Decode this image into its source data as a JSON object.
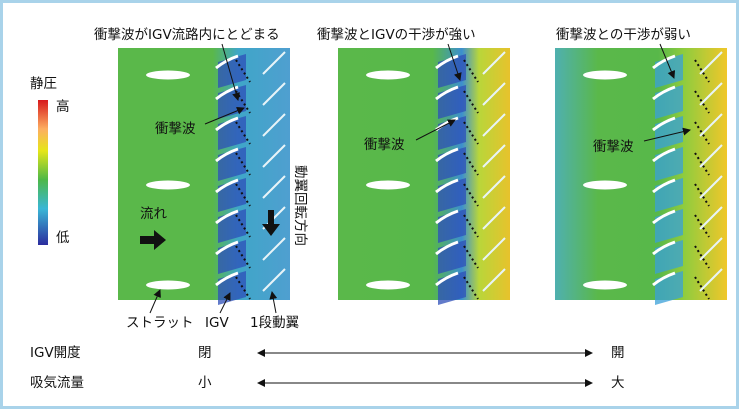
{
  "panels": [
    {
      "title": "衝撃波がIGV流路内にとどまる",
      "shock_label": "衝撃波"
    },
    {
      "title": "衝撃波とIGVの干渉が強い",
      "shock_label": "衝撃波"
    },
    {
      "title": "衝撃波との干渉が弱い",
      "shock_label": "衝撃波"
    }
  ],
  "legend": {
    "title": "静圧",
    "high": "高",
    "low": "低"
  },
  "annotations": {
    "flow": "流れ",
    "rotation": "動翼回転方向",
    "strut": "ストラット",
    "igv": "IGV",
    "rotor": "1段動翼"
  },
  "rows": [
    {
      "label": "IGV開度",
      "left": "閉",
      "right": "開"
    },
    {
      "label": "吸気流量",
      "left": "小",
      "right": "大"
    }
  ]
}
